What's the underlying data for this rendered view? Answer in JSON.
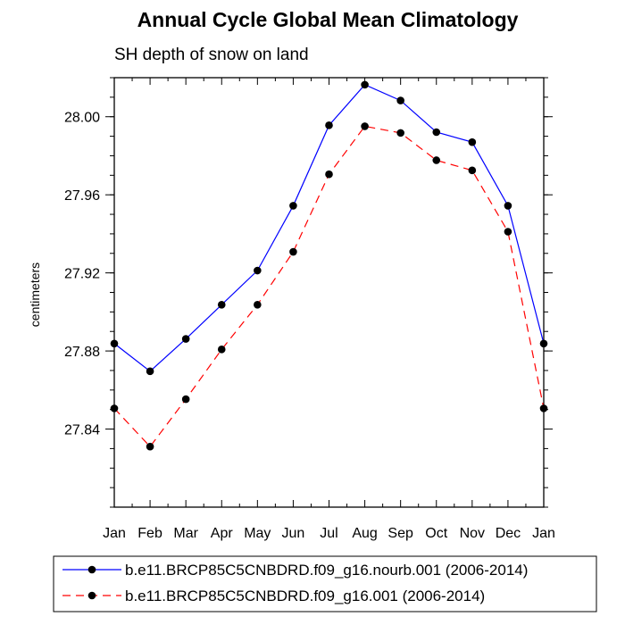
{
  "chart_data": {
    "type": "line",
    "title": "Annual Cycle Global Mean Climatology",
    "subtitle": "SH depth of snow on land",
    "xlabel": "",
    "ylabel": "centimeters",
    "categories": [
      "Jan",
      "Feb",
      "Mar",
      "Apr",
      "May",
      "Jun",
      "Jul",
      "Aug",
      "Sep",
      "Oct",
      "Nov",
      "Dec",
      "Jan"
    ],
    "ylim": [
      27.8,
      28.02
    ],
    "yticks": [
      27.84,
      27.88,
      27.92,
      27.96,
      28.0
    ],
    "ytick_labels": [
      "27.84",
      "27.88",
      "27.92",
      "27.96",
      "28.00"
    ],
    "grid": false,
    "legend_position": "bottom",
    "series": [
      {
        "name": "b.e11.BRCP85C5CNBDRD.f09_g16.nourb.001 (2006-2014)",
        "color": "#0000ff",
        "line_style": "solid",
        "marker": "filled-circle",
        "values": [
          27.8838,
          27.8696,
          27.8862,
          27.9037,
          27.9212,
          27.9544,
          27.9956,
          28.0164,
          28.0083,
          27.9921,
          27.987,
          27.9544,
          27.8838
        ]
      },
      {
        "name": "b.e11.BRCP85C5CNBDRD.f09_g16.001 (2006-2014)",
        "color": "#ff0000",
        "line_style": "dashed",
        "marker": "filled-circle",
        "values": [
          27.8506,
          27.831,
          27.8553,
          27.8808,
          27.9037,
          27.9308,
          27.9705,
          27.9951,
          27.9917,
          27.9777,
          27.9725,
          27.9411,
          27.8506
        ]
      }
    ]
  }
}
